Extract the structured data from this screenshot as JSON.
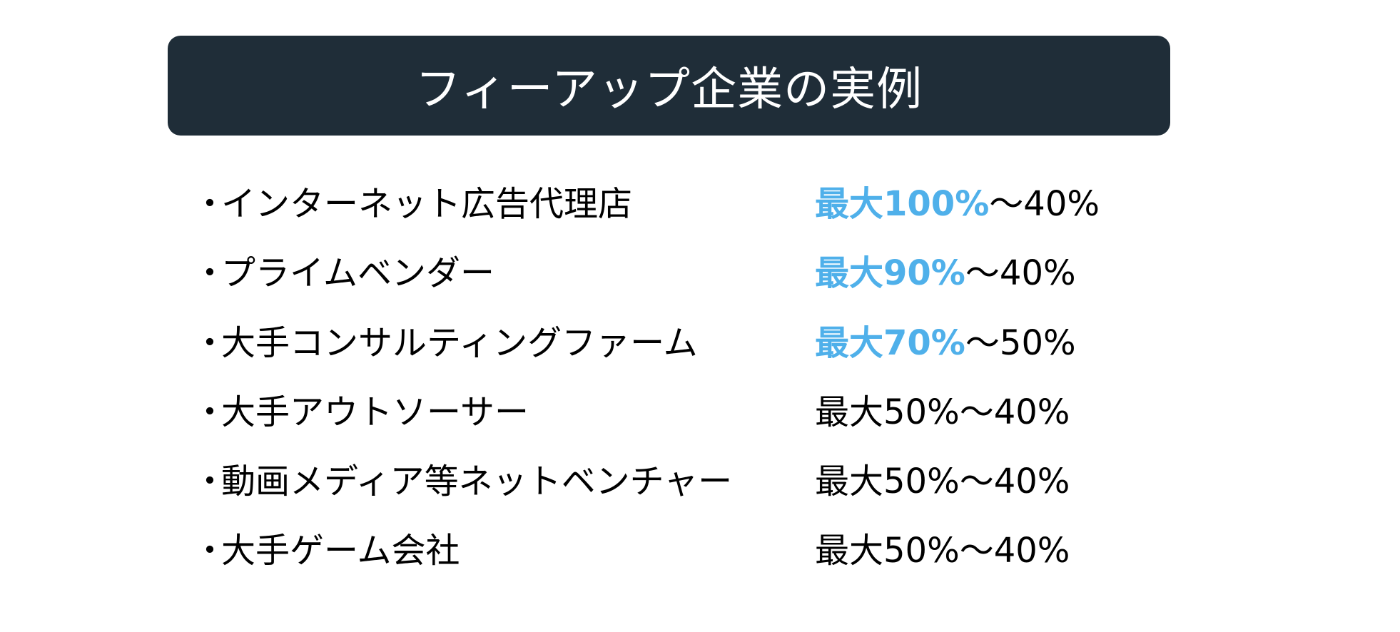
{
  "title": "フィーアップ企業の実例",
  "accent_color": "#4fb0ea",
  "header_color": "#1f2d38",
  "bullet": "・",
  "items": [
    {
      "label": "インターネット広告代理店",
      "highlight": "最大100%",
      "rest": "～40%"
    },
    {
      "label": "プライムベンダー",
      "highlight": "最大90%",
      "rest": "～40%"
    },
    {
      "label": "大手コンサルティングファーム",
      "highlight": "最大70%",
      "rest": "～50%"
    },
    {
      "label": "大手アウトソーサー",
      "highlight": "",
      "rest": "最大50%～40%"
    },
    {
      "label": "動画メディア等ネットベンチャー",
      "highlight": "",
      "rest": "最大50%～40%"
    },
    {
      "label": "大手ゲーム会社",
      "highlight": "",
      "rest": "最大50%～40%"
    }
  ]
}
